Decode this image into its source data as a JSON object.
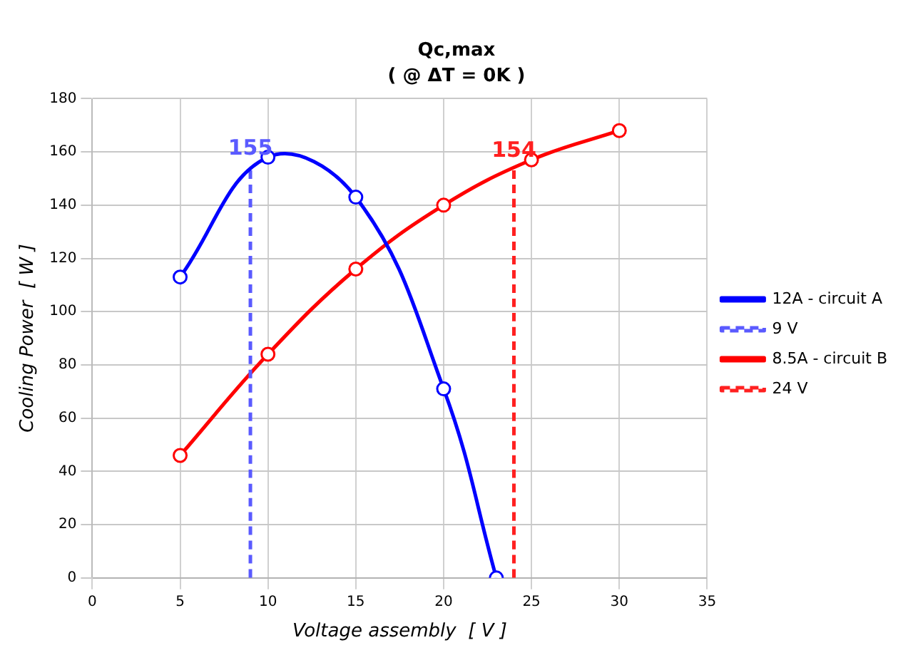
{
  "chart_data": {
    "type": "line",
    "title": "Qc,max",
    "subtitle": "( @ ΔT = 0K )",
    "xlabel": "Voltage assembly  [ V ]",
    "ylabel": "Cooling Power  [ W ]",
    "xlim": [
      0,
      35
    ],
    "xticks": [
      0,
      5,
      10,
      15,
      20,
      25,
      30,
      35
    ],
    "ylim": [
      0,
      180
    ],
    "yticks": [
      0,
      20,
      40,
      60,
      80,
      100,
      120,
      140,
      160,
      180
    ],
    "grid": true,
    "legend": "right",
    "series": [
      {
        "name": "12A - circuit A",
        "color": "#0000ff",
        "x": [
          5,
          10,
          15,
          20,
          23
        ],
        "values": [
          113,
          158,
          143,
          71,
          0
        ],
        "marker": "circle",
        "line_style": "solid"
      },
      {
        "name": "9 V",
        "color": "#5a5aff",
        "x": [
          9,
          9
        ],
        "values": [
          0,
          155
        ],
        "marker": "none",
        "line_style": "dashed"
      },
      {
        "name": "8.5A - circuit B",
        "color": "#ff0000",
        "x": [
          5,
          10,
          15,
          20,
          25,
          30
        ],
        "values": [
          46,
          84,
          116,
          140,
          157,
          168
        ],
        "marker": "circle",
        "line_style": "solid"
      },
      {
        "name": "24 V",
        "color": "#ff2020",
        "x": [
          24,
          24
        ],
        "values": [
          0,
          154
        ],
        "marker": "none",
        "line_style": "dashed"
      }
    ],
    "annotations": [
      {
        "text": "155",
        "x": 9,
        "y": 155
      },
      {
        "text": "154",
        "x": 24,
        "y": 154
      }
    ]
  }
}
